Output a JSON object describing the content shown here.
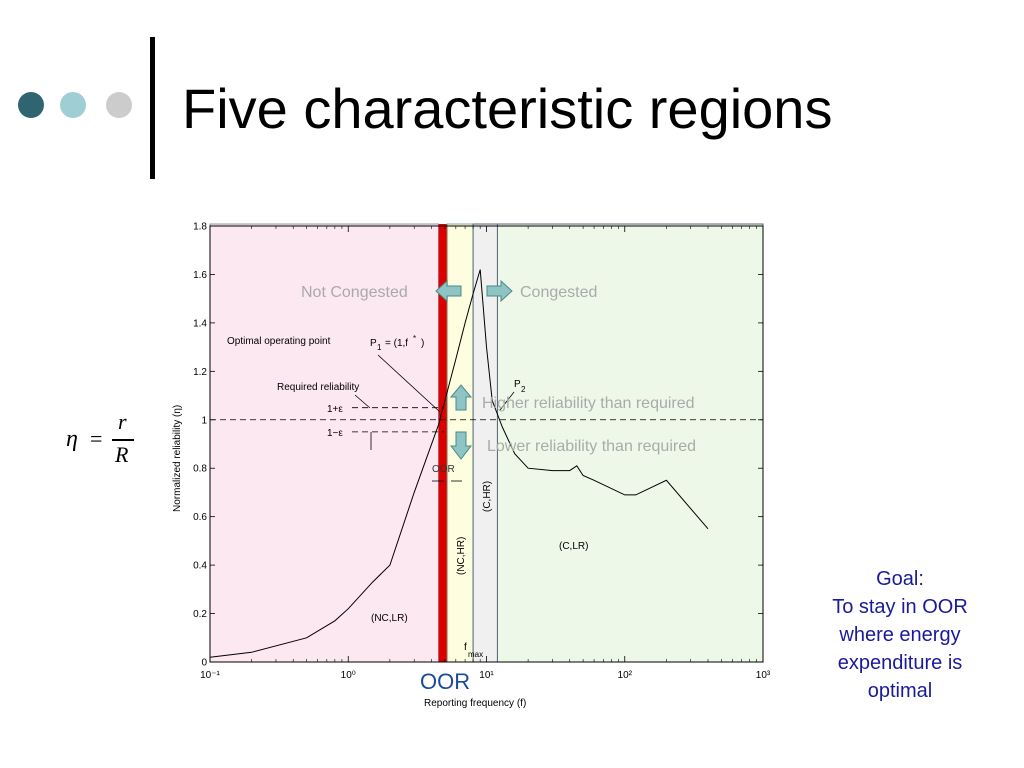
{
  "slide": {
    "title": "Five characteristic regions",
    "dot_colors": [
      "#2e6570",
      "#9fcfd3",
      "#cccccc"
    ],
    "equation": {
      "lhs": "η",
      "equals": "=",
      "numerator": "r",
      "denominator": "R"
    },
    "goal_lines": [
      "Goal:",
      "To stay in OOR",
      "where energy",
      "expenditure is",
      "optimal"
    ],
    "oor_label": "OOR"
  },
  "chart_data": {
    "type": "line",
    "xscale": "log",
    "xlim": [
      0.1,
      1000
    ],
    "ylim": [
      0,
      1.8
    ],
    "xlabel": "Reporting frequency (f)",
    "ylabel": "Normalized reliability (η)",
    "x_ticks": [
      "10⁻¹",
      "10⁰",
      "10¹",
      "10²",
      "10³"
    ],
    "y_ticks": [
      "0",
      "0.2",
      "0.4",
      "0.6",
      "0.8",
      "1",
      "1.2",
      "1.4",
      "1.6",
      "1.8"
    ],
    "series": [
      {
        "x": [
          0.1,
          0.2,
          0.5,
          0.8,
          1,
          1.5,
          2,
          3,
          4.5,
          6,
          7,
          8,
          9,
          10,
          11,
          13,
          16,
          20,
          30,
          40,
          45,
          50,
          60,
          100,
          120,
          200,
          400
        ],
        "y": [
          0.02,
          0.04,
          0.1,
          0.17,
          0.22,
          0.33,
          0.4,
          0.7,
          0.98,
          1.25,
          1.4,
          1.52,
          1.62,
          1.3,
          1.08,
          0.97,
          0.86,
          0.8,
          0.79,
          0.79,
          0.81,
          0.77,
          0.75,
          0.69,
          0.69,
          0.75,
          0.55
        ]
      }
    ],
    "reference_lines": [
      {
        "label": "1+ε",
        "y": 1.05
      },
      {
        "label": "1",
        "y": 1.0
      },
      {
        "label": "1−ε",
        "y": 0.95
      }
    ],
    "regions": [
      {
        "label": "(NC,LR)",
        "x_range": [
          0.1,
          4.5
        ],
        "color": "#fce8f0"
      },
      {
        "label": "OOR",
        "x_range": [
          4.5,
          5.2
        ],
        "color": "#dd0000"
      },
      {
        "label": "(NC,HR)",
        "x_range": [
          5.2,
          8
        ],
        "color": "#fdfde0"
      },
      {
        "label": "(C,HR)",
        "x_range": [
          8,
          12
        ],
        "color": "#f0f0f0"
      },
      {
        "label": "(C,LR)",
        "x_range": [
          12,
          1000
        ],
        "color": "#eef8e8"
      }
    ],
    "annotations": {
      "optimal_operating_point": "Optimal operating point",
      "p1": "P",
      "p1_sub": "1",
      "p1_eq": "= (1,f",
      "p1_sup": "*",
      "p1_close": ")",
      "required_reliability": "Required reliability",
      "p2": "P",
      "p2_sub": "2",
      "oor_small": "OOR",
      "fmax": "f",
      "fmax_sub": "max",
      "not_congested": "Not Congested",
      "congested": "Congested",
      "higher": "Higher reliability than required",
      "lower": "Lower reliability than required"
    }
  }
}
